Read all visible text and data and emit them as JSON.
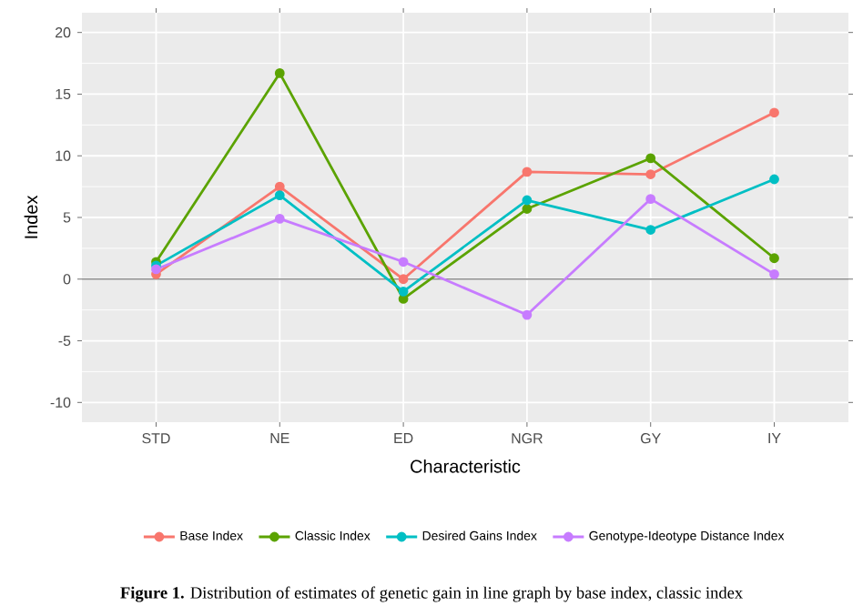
{
  "chart_data": {
    "type": "line",
    "xlabel": "Characteristic",
    "ylabel": "Index",
    "categories": [
      "STD",
      "NE",
      "ED",
      "NGR",
      "GY",
      "IY"
    ],
    "series": [
      {
        "name": "Base Index",
        "color": "#F8766D",
        "values": [
          0.4,
          7.5,
          0.0,
          8.7,
          8.5,
          13.5
        ]
      },
      {
        "name": "Classic Index",
        "color": "#5BA300",
        "values": [
          1.4,
          16.7,
          -1.6,
          5.7,
          9.8,
          1.7
        ]
      },
      {
        "name": "Desired Gains Index",
        "color": "#00BFC4",
        "values": [
          1.1,
          6.8,
          -1.0,
          6.4,
          4.0,
          8.1
        ]
      },
      {
        "name": "Genotype-Ideotype Distance Index",
        "color": "#C77CFF",
        "values": [
          0.8,
          4.9,
          1.4,
          -2.9,
          6.5,
          0.4
        ]
      }
    ],
    "ylim": [
      -11.6,
      21.6
    ],
    "yticks": [
      -10,
      -5,
      0,
      5,
      10,
      15,
      20
    ],
    "ref_lines": [
      {
        "axis": "y",
        "value": 0,
        "color": "#8C8C8C"
      }
    ],
    "grid": true,
    "legend": "bottom",
    "marker": "circle",
    "line_style": "solid",
    "annotations": [
      "**Figure 1.** Distribution of estimates of genetic gain in line graph by base index, classic index"
    ]
  }
}
